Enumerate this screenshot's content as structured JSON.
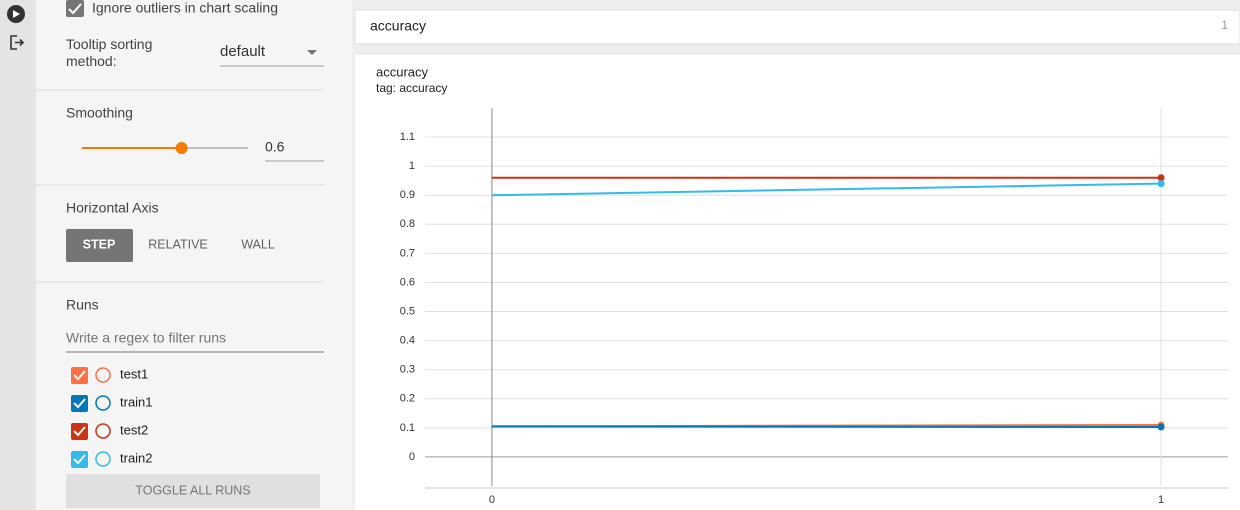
{
  "sidebar": {
    "ignore_outliers": {
      "label": "Ignore outliers in chart scaling",
      "checked": true
    },
    "tooltip_sorting": {
      "label": "Tooltip sorting method:",
      "value": "default"
    },
    "smoothing": {
      "label": "Smoothing",
      "value": 0.6,
      "range": [
        0,
        1
      ]
    },
    "horizontal_axis": {
      "label": "Horizontal Axis",
      "options": [
        "STEP",
        "RELATIVE",
        "WALL"
      ],
      "selected": 0
    },
    "runs": {
      "label": "Runs",
      "filter_placeholder": "Write a regex to filter runs",
      "toggle_all": "TOGGLE ALL RUNS"
    }
  },
  "card": {
    "header": "accuracy",
    "count": 1
  },
  "chart_data": {
    "type": "line",
    "title": "accuracy",
    "subtitle": "tag: accuracy",
    "x": [
      0,
      1
    ],
    "series": [
      {
        "name": "test1",
        "color": "#ff7043",
        "values": [
          0.105,
          0.11
        ]
      },
      {
        "name": "train1",
        "color": "#0077bb",
        "values": [
          0.105,
          0.103
        ]
      },
      {
        "name": "test2",
        "color": "#cc3311",
        "values": [
          0.96,
          0.96
        ]
      },
      {
        "name": "train2",
        "color": "#33bbee",
        "values": [
          0.9,
          0.94
        ]
      }
    ],
    "xlim": [
      -0.1,
      1.1
    ],
    "xticks": [
      0,
      1
    ],
    "ylim": [
      -0.1,
      1.2
    ],
    "yticks": [
      0,
      0.1,
      0.2,
      0.3,
      0.4,
      0.5,
      0.6,
      0.7,
      0.8,
      0.9,
      1,
      1.1
    ],
    "grid": true
  }
}
